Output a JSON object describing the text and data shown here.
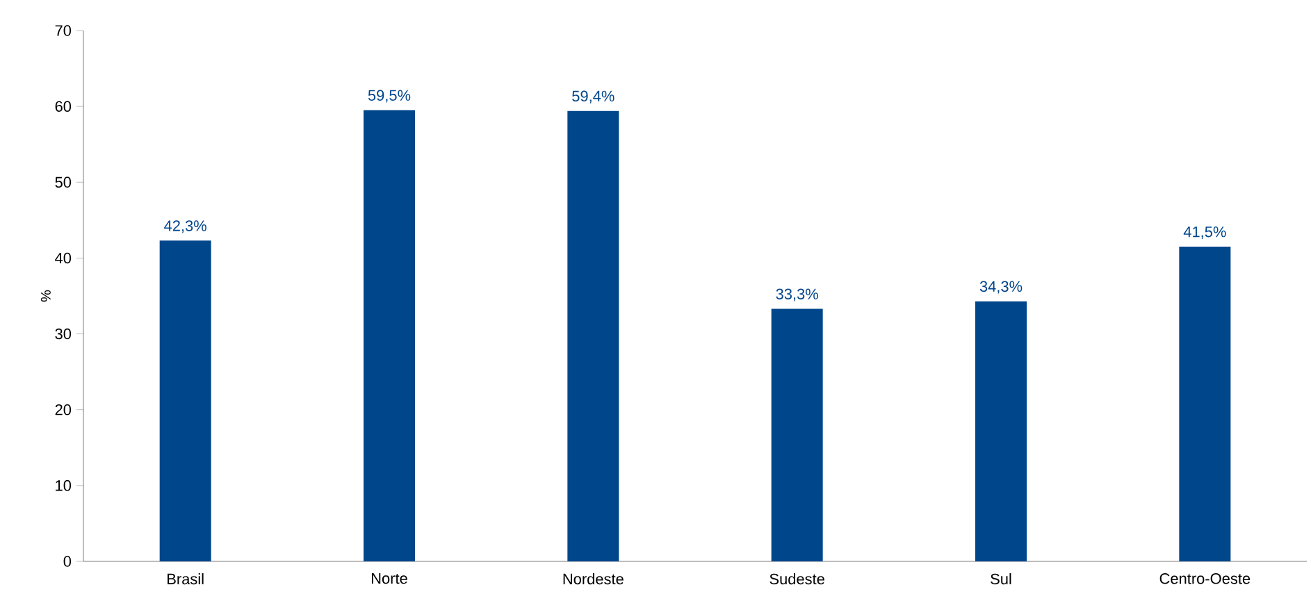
{
  "chart_data": {
    "type": "bar",
    "ylabel": "%",
    "categories": [
      "Brasil",
      "Norte",
      "Nordeste",
      "Sudeste",
      "Sul",
      "Centro-Oeste"
    ],
    "values": [
      42.3,
      59.5,
      59.4,
      33.3,
      34.3,
      41.5
    ],
    "value_labels": [
      "42,3%",
      "59,5%",
      "59,4%",
      "33,3%",
      "34,3%",
      "41,5%"
    ],
    "color": "#00468b",
    "ylim": [
      0,
      70
    ],
    "yticks": [
      0,
      10,
      20,
      30,
      40,
      50,
      60,
      70
    ],
    "grid": false
  }
}
